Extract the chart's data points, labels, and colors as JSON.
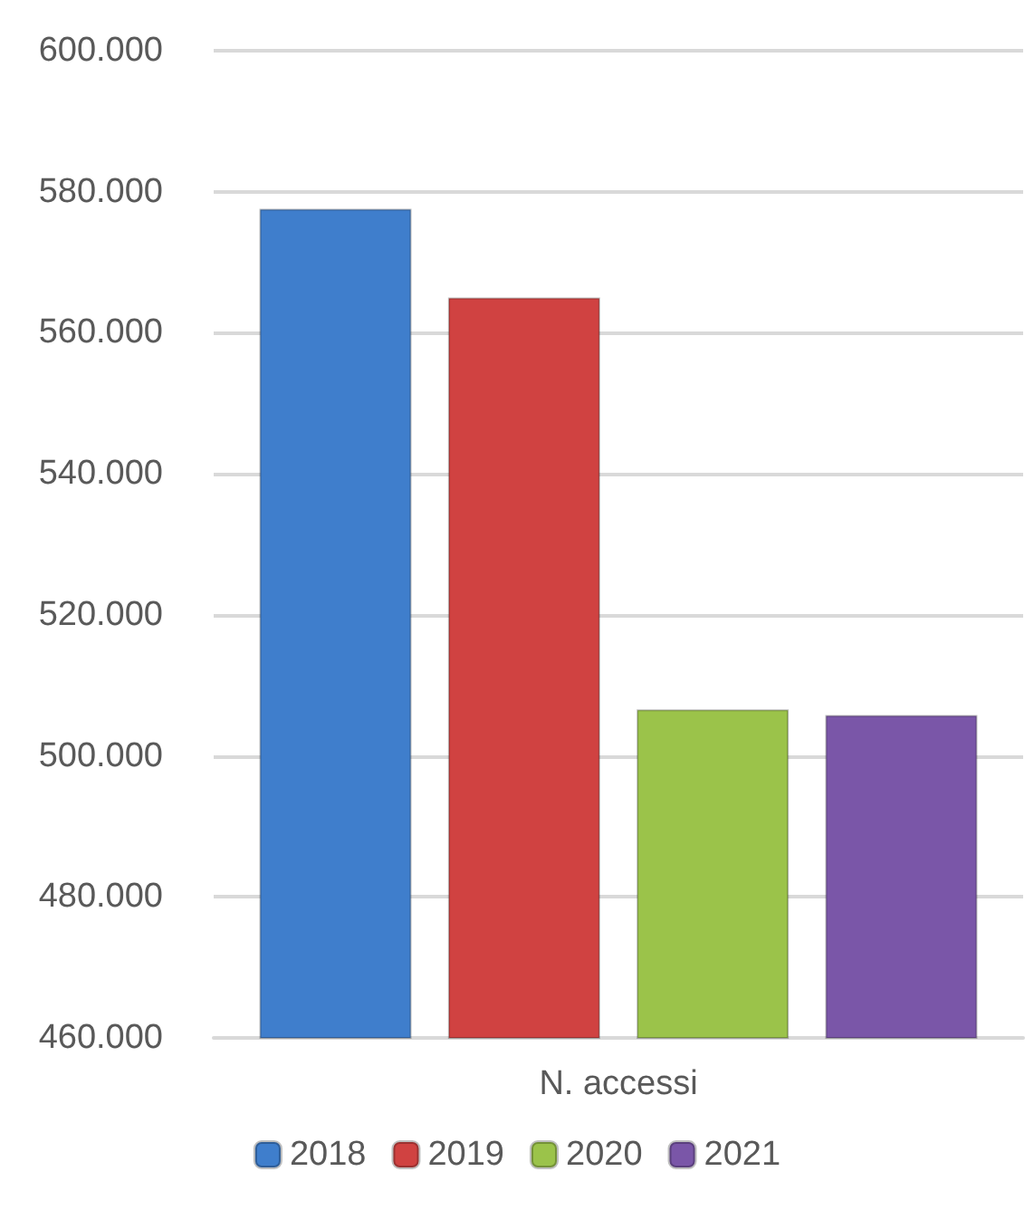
{
  "chart_data": {
    "type": "bar",
    "categories": [
      "N. accessi"
    ],
    "series": [
      {
        "name": "2018",
        "color": "#3f7ecc",
        "values": [
          577600
        ]
      },
      {
        "name": "2019",
        "color": "#d04241",
        "values": [
          565000
        ]
      },
      {
        "name": "2020",
        "color": "#9bc34a",
        "values": [
          506600
        ]
      },
      {
        "name": "2021",
        "color": "#7a56a8",
        "values": [
          505800
        ]
      }
    ],
    "ylim": [
      460000,
      600000
    ],
    "yticks": [
      {
        "value": 460000,
        "label": "460.000"
      },
      {
        "value": 480000,
        "label": "480.000"
      },
      {
        "value": 500000,
        "label": "500.000"
      },
      {
        "value": 520000,
        "label": "520.000"
      },
      {
        "value": 540000,
        "label": "540.000"
      },
      {
        "value": 560000,
        "label": "560.000"
      },
      {
        "value": 580000,
        "label": "580.000"
      },
      {
        "value": 600000,
        "label": "600.000"
      }
    ],
    "grid": "y",
    "legend": "bottom"
  }
}
